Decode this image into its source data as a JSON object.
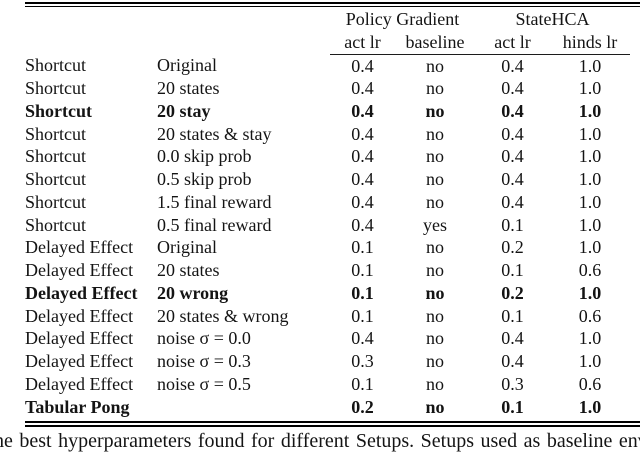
{
  "page": {
    "background": "#ffffff",
    "text_color": "#141414",
    "rule_color": "#000000"
  },
  "table": {
    "header": {
      "groups": [
        {
          "label": "Policy Gradient"
        },
        {
          "label": "StateHCA"
        }
      ],
      "columns": [
        "act lr",
        "baseline",
        "act lr",
        "hinds lr"
      ]
    },
    "rows": [
      {
        "env": "Shortcut",
        "setup": "Original",
        "pg_act_lr": "0.4",
        "pg_baseline": "no",
        "hca_act_lr": "0.4",
        "hca_hinds_lr": "1.0",
        "bold": false
      },
      {
        "env": "Shortcut",
        "setup": "20 states",
        "pg_act_lr": "0.4",
        "pg_baseline": "no",
        "hca_act_lr": "0.4",
        "hca_hinds_lr": "1.0",
        "bold": false
      },
      {
        "env": "Shortcut",
        "setup": "20 stay",
        "pg_act_lr": "0.4",
        "pg_baseline": "no",
        "hca_act_lr": "0.4",
        "hca_hinds_lr": "1.0",
        "bold": true
      },
      {
        "env": "Shortcut",
        "setup": "20 states & stay",
        "pg_act_lr": "0.4",
        "pg_baseline": "no",
        "hca_act_lr": "0.4",
        "hca_hinds_lr": "1.0",
        "bold": false
      },
      {
        "env": "Shortcut",
        "setup": "0.0 skip prob",
        "pg_act_lr": "0.4",
        "pg_baseline": "no",
        "hca_act_lr": "0.4",
        "hca_hinds_lr": "1.0",
        "bold": false
      },
      {
        "env": "Shortcut",
        "setup": "0.5 skip prob",
        "pg_act_lr": "0.4",
        "pg_baseline": "no",
        "hca_act_lr": "0.4",
        "hca_hinds_lr": "1.0",
        "bold": false
      },
      {
        "env": "Shortcut",
        "setup": "1.5 final reward",
        "pg_act_lr": "0.4",
        "pg_baseline": "no",
        "hca_act_lr": "0.4",
        "hca_hinds_lr": "1.0",
        "bold": false
      },
      {
        "env": "Shortcut",
        "setup": "0.5 final reward",
        "pg_act_lr": "0.4",
        "pg_baseline": "yes",
        "hca_act_lr": "0.1",
        "hca_hinds_lr": "1.0",
        "bold": false
      },
      {
        "env": "Delayed Effect",
        "setup": "Original",
        "pg_act_lr": "0.1",
        "pg_baseline": "no",
        "hca_act_lr": "0.2",
        "hca_hinds_lr": "1.0",
        "bold": false
      },
      {
        "env": "Delayed Effect",
        "setup": "20 states",
        "pg_act_lr": "0.1",
        "pg_baseline": "no",
        "hca_act_lr": "0.1",
        "hca_hinds_lr": "0.6",
        "bold": false
      },
      {
        "env": "Delayed Effect",
        "setup": "20 wrong",
        "pg_act_lr": "0.1",
        "pg_baseline": "no",
        "hca_act_lr": "0.2",
        "hca_hinds_lr": "1.0",
        "bold": true
      },
      {
        "env": "Delayed Effect",
        "setup": "20 states & wrong",
        "pg_act_lr": "0.1",
        "pg_baseline": "no",
        "hca_act_lr": "0.1",
        "hca_hinds_lr": "0.6",
        "bold": false
      },
      {
        "env": "Delayed Effect",
        "setup": "noise σ = 0.0",
        "pg_act_lr": "0.4",
        "pg_baseline": "no",
        "hca_act_lr": "0.4",
        "hca_hinds_lr": "1.0",
        "bold": false
      },
      {
        "env": "Delayed Effect",
        "setup": "noise σ = 0.3",
        "pg_act_lr": "0.3",
        "pg_baseline": "no",
        "hca_act_lr": "0.4",
        "hca_hinds_lr": "1.0",
        "bold": false
      },
      {
        "env": "Delayed Effect",
        "setup": "noise σ = 0.5",
        "pg_act_lr": "0.1",
        "pg_baseline": "no",
        "hca_act_lr": "0.3",
        "hca_hinds_lr": "0.6",
        "bold": false
      },
      {
        "env": "Tabular Pong",
        "setup": "",
        "pg_act_lr": "0.2",
        "pg_baseline": "no",
        "hca_act_lr": "0.1",
        "hca_hinds_lr": "1.0",
        "bold": true
      }
    ]
  },
  "caption": {
    "visible_text": "he best hyperparameters found for different Setups. Setups used as baseline env"
  }
}
